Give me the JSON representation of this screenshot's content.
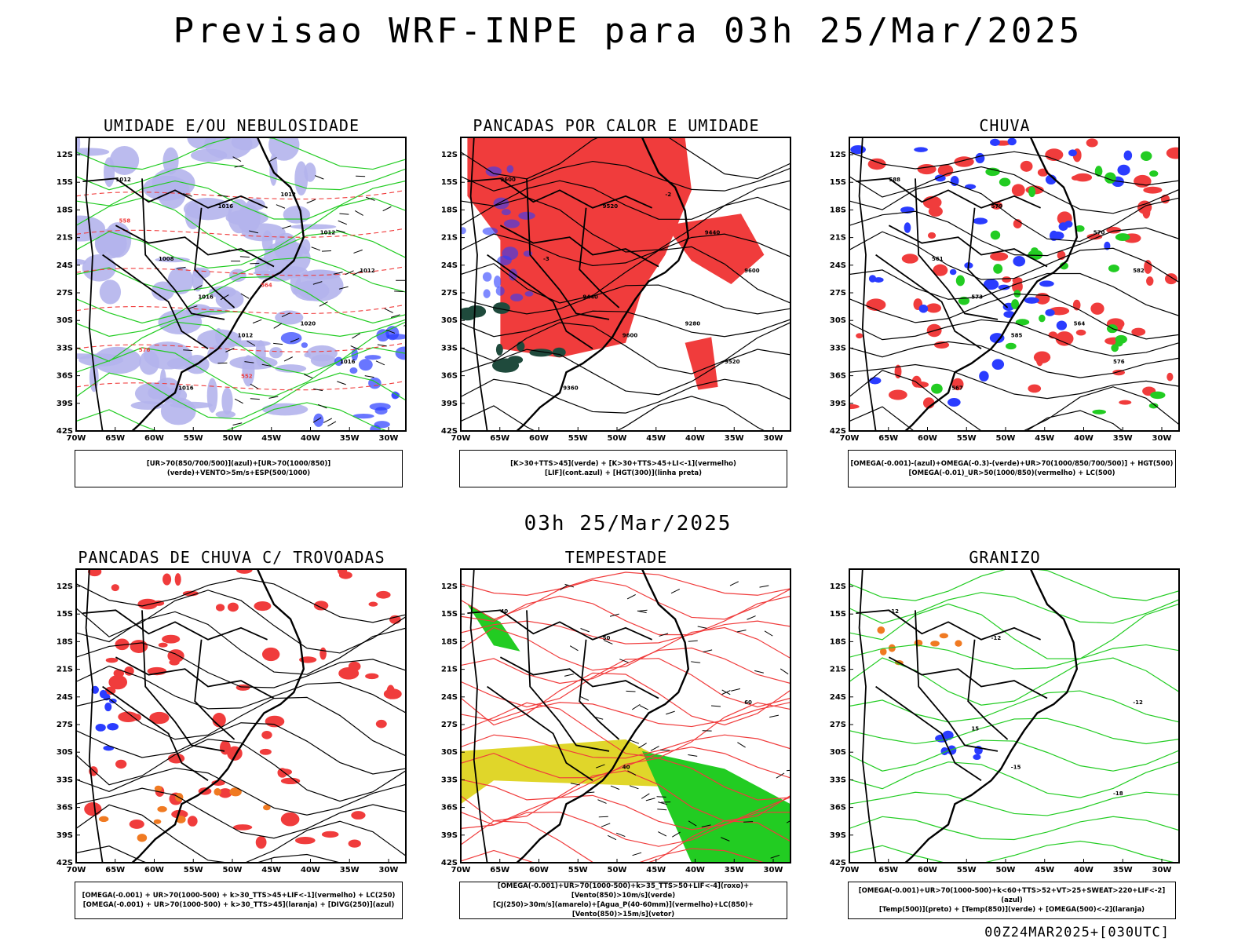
{
  "title": "Previsao WRF-INPE  para 03h 25/Mar/2025",
  "subtitle": "03h 25/Mar/2025",
  "footer": "00Z24MAR2025+[030UTC]",
  "lat_ticks": [
    "12S",
    "15S",
    "18S",
    "21S",
    "24S",
    "27S",
    "30S",
    "33S",
    "36S",
    "39S",
    "42S"
  ],
  "lon_ticks": [
    "70W",
    "65W",
    "60W",
    "55W",
    "50W",
    "45W",
    "40W",
    "35W",
    "30W"
  ],
  "colors": {
    "red": "#f03c3c",
    "green": "#22cc22",
    "blue": "#2a3cff",
    "lavender": "#b4b4ec",
    "yellow": "#e0d62a",
    "darkgreen": "#1f4a3c",
    "orange": "#f07a22"
  },
  "panels": [
    {
      "title": "UMIDADE E/OU NEBULOSIDADE",
      "legend": [
        "[UR>70(850/700/500)](azul)+[UR>70(1000/850)](verde)+VENTO>5m/s+ESP(500/1000)"
      ],
      "labels": [
        "1012",
        "1012",
        "1012",
        "1016",
        "1016",
        "1016",
        "1012",
        "1016",
        "1020",
        "1008",
        "1012",
        "576",
        "564",
        "558",
        "552"
      ]
    },
    {
      "title": "PANCADAS POR CALOR E UMIDADE",
      "legend": [
        "[K>30+TTS>45](verde) + [K>30+TTS>45+LI<-1](vermelho)",
        "[LIF](cont.azul) + [HGT(300)](linha preta)"
      ],
      "labels": [
        "9600",
        "9600",
        "9600",
        "9520",
        "9520",
        "9440",
        "9440",
        "9360",
        "9280",
        "-3",
        "-2"
      ]
    },
    {
      "title": "CHUVA",
      "legend": [
        "[OMEGA(-0.001)-(azul)+OMEGA(-0.3)-(verde)+UR>70(1000/850/700/500)] + HGT(500)",
        "[OMEGA(-0.01)_UR>50(1000/850)(vermelho) + LC(500)"
      ],
      "labels": [
        "588",
        "585",
        "582",
        "579",
        "576",
        "573",
        "570",
        "567",
        "564",
        "561"
      ]
    },
    {
      "title": "PANCADAS DE CHUVA C/ TROVOADAS",
      "legend": [
        "[OMEGA(-0.001) + UR>70(1000-500) + k>30_TTS>45+LIF<-1](vermelho) + LC(250)",
        "[OMEGA(-0.001) + UR>70(1000-500) + k>30_TTS>45](laranja) + [DIVG(250)](azul)"
      ],
      "labels": []
    },
    {
      "title": "TEMPESTADE",
      "legend": [
        "[OMEGA(-0.001)+UR>70(1000-500)+k>35_TTS>50+LIF<-4](roxo)+[Vento(850)>10m/s](verde)",
        "[CJ(250)>30m/s](amarelo)+[Agua_P(40-60mm)](vermelho)+LC(850)+[Vento(850)>15m/s](vetor)"
      ],
      "labels": [
        "40",
        "40",
        "60",
        "50"
      ]
    },
    {
      "title": "GRANIZO",
      "legend": [
        "[OMEGA(-0.001)+UR>70(1000-500)+k<60+TTS>52+VT>25+SWEAT>220+LIF<-2](azul)",
        "[Temp(500)](preto) + [Temp(850)](verde) + [OMEGA(500)<-2](laranja)"
      ],
      "labels": [
        "-12",
        "-15",
        "-12",
        "-12",
        "-18",
        "15"
      ]
    }
  ]
}
